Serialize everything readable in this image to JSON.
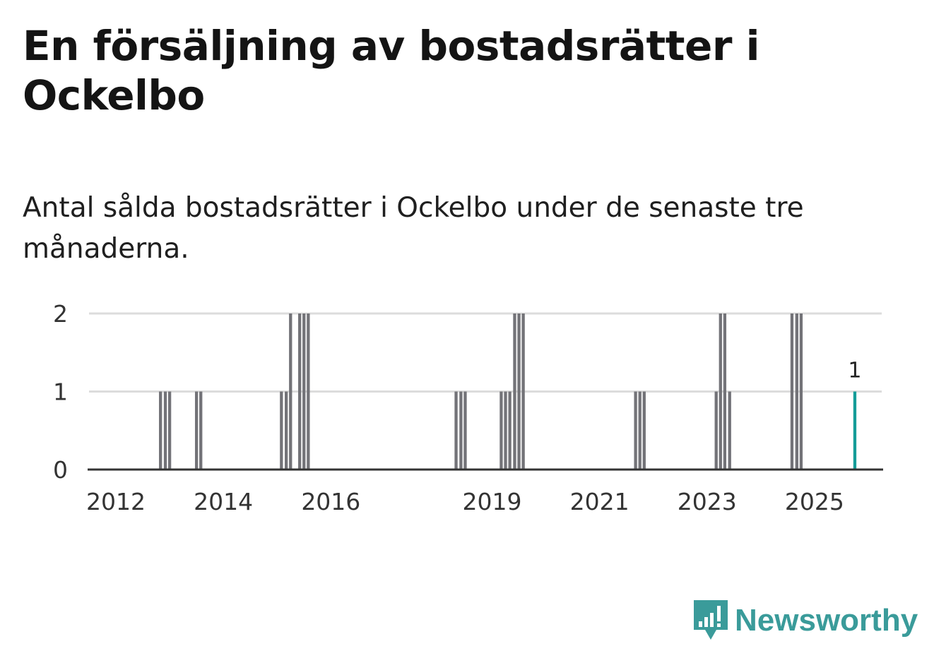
{
  "title": "En försäljning av bostadsrätter i Ockelbo",
  "subtitle": "Antal sålda bostadsrätter i Ockelbo under de senaste tre månaderna.",
  "brand": {
    "name": "Newsworthy",
    "icon": "newsworthy-logo-icon",
    "color": "#3a9b9a"
  },
  "colors": {
    "bar": "#737378",
    "highlight": "#149c98",
    "grid": "#dcdcdc",
    "axis": "#333333"
  },
  "chart_data": {
    "type": "bar",
    "title": "En försäljning av bostadsrätter i Ockelbo",
    "xlabel": "",
    "ylabel": "",
    "ylim": [
      0,
      2
    ],
    "yticks": [
      0,
      1,
      2
    ],
    "xlim": [
      2011.5,
      2026.25
    ],
    "xticks": [
      2012,
      2014,
      2016,
      2019,
      2021,
      2023,
      2025
    ],
    "grid": true,
    "bar_width_years": 0.083,
    "x": [
      2012.83,
      2012.92,
      2013.0,
      2013.5,
      2013.58,
      2015.08,
      2015.17,
      2015.25,
      2015.42,
      2015.5,
      2015.58,
      2018.33,
      2018.42,
      2018.5,
      2019.17,
      2019.25,
      2019.33,
      2019.42,
      2019.5,
      2019.58,
      2021.67,
      2021.75,
      2021.83,
      2023.17,
      2023.25,
      2023.33,
      2023.42,
      2024.58,
      2024.67,
      2024.75,
      2025.75
    ],
    "values": [
      1,
      1,
      1,
      1,
      1,
      1,
      1,
      2,
      2,
      2,
      2,
      1,
      1,
      1,
      1,
      1,
      1,
      2,
      2,
      2,
      1,
      1,
      1,
      1,
      2,
      2,
      1,
      2,
      2,
      2,
      1
    ],
    "highlight_index": 30,
    "annotations": [
      {
        "index": 30,
        "text": "1"
      }
    ]
  }
}
